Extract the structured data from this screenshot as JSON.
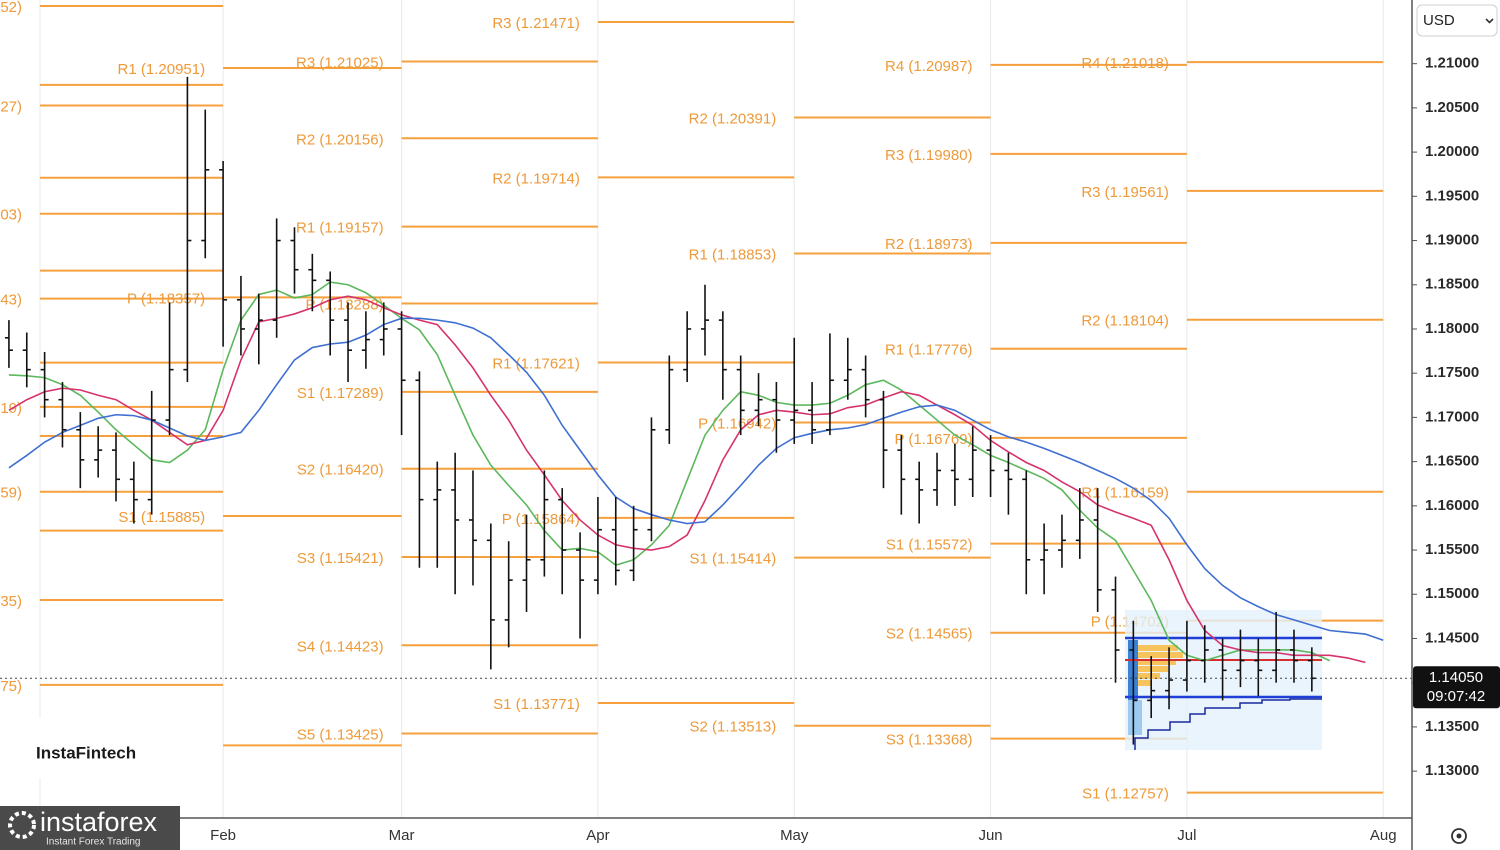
{
  "chart_data": {
    "type": "ohlc",
    "categories": [
      null,
      null,
      null,
      null,
      null,
      null,
      null,
      null,
      null,
      null,
      null,
      null,
      "Feb",
      null,
      null,
      null,
      null,
      null,
      null,
      null,
      null,
      null,
      "Mar",
      null,
      null,
      null,
      null,
      null,
      null,
      null,
      null,
      null,
      null,
      "Apr",
      null,
      null,
      null,
      null,
      null,
      null,
      null,
      null,
      null,
      null,
      "May",
      null,
      null,
      null,
      null,
      null,
      null,
      null,
      null,
      null,
      null,
      "Jun",
      null,
      null,
      null,
      null,
      null,
      null,
      null,
      null,
      null,
      null,
      "Jul",
      null,
      null,
      null,
      null,
      null,
      null,
      null,
      null,
      null,
      null,
      "Aug",
      null
    ],
    "open": [
      1.179,
      1.1776,
      1.1754,
      1.172,
      1.1686,
      1.1652,
      1.1663,
      1.163,
      1.1607,
      1.1697,
      1.1754,
      1.19,
      1.198,
      1.1833,
      1.18,
      1.181,
      1.19,
      1.1867,
      1.1855,
      1.181,
      1.1776,
      1.1788,
      1.18,
      1.1742,
      1.1607,
      1.1618,
      1.1584,
      1.1561,
      1.1471,
      1.1516,
      1.1539,
      1.1607,
      1.155,
      1.1516,
      1.1573,
      1.1527,
      1.1573,
      1.1686,
      1.1754,
      1.18,
      1.181,
      1.1754,
      1.1708,
      1.172,
      1.1697,
      1.1708,
      1.1686,
      1.1742,
      1.1754,
      1.172,
      1.1663,
      1.163,
      1.1618,
      1.164,
      1.163,
      1.1663,
      1.164,
      1.163,
      1.1539,
      1.155,
      1.1561,
      1.1584,
      1.1505,
      1.1437,
      1.138,
      1.1391,
      1.1403,
      1.1425,
      1.1437,
      1.1414,
      1.1425,
      1.1414,
      1.1437,
      1.1425,
      null,
      null,
      null,
      null,
      null
    ],
    "high": [
      1.181,
      1.1796,
      1.1774,
      1.174,
      1.1706,
      1.169,
      1.1683,
      1.165,
      1.173,
      1.183,
      1.2085,
      1.2048,
      1.199,
      1.186,
      1.184,
      1.1925,
      1.1915,
      1.1885,
      1.1865,
      1.183,
      1.182,
      1.183,
      1.182,
      1.1752,
      1.165,
      1.166,
      1.164,
      1.158,
      1.156,
      1.159,
      1.164,
      1.162,
      1.157,
      1.161,
      1.161,
      1.16,
      1.17,
      1.177,
      1.182,
      1.185,
      1.182,
      1.177,
      1.175,
      1.174,
      1.179,
      1.174,
      1.1795,
      1.179,
      1.177,
      1.173,
      1.168,
      1.165,
      1.166,
      1.167,
      1.169,
      1.168,
      1.166,
      1.164,
      1.158,
      1.159,
      1.162,
      1.162,
      1.152,
      1.147,
      1.143,
      1.144,
      1.147,
      1.1465,
      1.145,
      1.146,
      1.145,
      1.148,
      1.146,
      1.144,
      null,
      null,
      null,
      null,
      null
    ],
    "low": [
      1.1756,
      1.1734,
      1.17,
      1.1666,
      1.162,
      1.1632,
      1.1605,
      1.158,
      1.159,
      1.168,
      1.174,
      1.188,
      1.178,
      1.177,
      1.176,
      1.179,
      1.184,
      1.182,
      1.177,
      1.174,
      1.1755,
      1.177,
      1.168,
      1.153,
      1.153,
      1.15,
      1.151,
      1.1415,
      1.144,
      1.148,
      1.152,
      1.15,
      1.145,
      1.15,
      1.151,
      1.1515,
      1.156,
      1.167,
      1.174,
      1.177,
      1.172,
      1.168,
      1.169,
      1.166,
      1.167,
      1.167,
      1.168,
      1.172,
      1.17,
      1.162,
      1.159,
      1.158,
      1.16,
      1.16,
      1.161,
      1.161,
      1.159,
      1.15,
      1.15,
      1.153,
      1.154,
      1.148,
      1.14,
      1.133,
      1.136,
      1.137,
      1.139,
      1.14,
      1.138,
      1.1395,
      1.1385,
      1.14,
      1.14,
      1.139,
      null,
      null,
      null,
      null,
      null
    ],
    "close": [
      1.1776,
      1.1754,
      1.172,
      1.1686,
      1.1652,
      1.1663,
      1.163,
      1.1607,
      1.1697,
      1.1754,
      1.19,
      1.198,
      1.1833,
      1.18,
      1.181,
      1.19,
      1.1867,
      1.1855,
      1.181,
      1.1776,
      1.1788,
      1.18,
      1.1742,
      1.1607,
      1.1618,
      1.1584,
      1.1561,
      1.1471,
      1.1516,
      1.1539,
      1.1607,
      1.155,
      1.1516,
      1.1573,
      1.1527,
      1.1573,
      1.1686,
      1.1754,
      1.18,
      1.181,
      1.1754,
      1.1708,
      1.172,
      1.1697,
      1.1708,
      1.1686,
      1.1742,
      1.1754,
      1.172,
      1.1663,
      1.163,
      1.1618,
      1.164,
      1.163,
      1.1663,
      1.164,
      1.163,
      1.1539,
      1.155,
      1.1561,
      1.1584,
      1.1505,
      1.1437,
      1.138,
      1.1391,
      1.1403,
      1.1425,
      1.1437,
      1.1414,
      1.1425,
      1.1414,
      1.1437,
      1.1425,
      1.1405,
      null,
      null,
      null,
      null,
      null
    ],
    "bar_color": "#111111",
    "series": [
      {
        "color": "#5cb85c",
        "values": [
          1.1748,
          1.1747,
          1.1745,
          1.1737,
          1.1725,
          1.1706,
          1.1686,
          1.1669,
          1.1652,
          1.1649,
          1.1663,
          1.1686,
          1.1754,
          1.181,
          1.1839,
          1.1844,
          1.1835,
          1.1839,
          1.1853,
          1.185,
          1.1841,
          1.1827,
          1.1812,
          1.1799,
          1.1771,
          1.1725,
          1.168,
          1.1646,
          1.1623,
          1.1601,
          1.1572,
          1.155,
          1.1552,
          1.1548,
          1.1533,
          1.1539,
          1.1556,
          1.1578,
          1.1629,
          1.168,
          1.1708,
          1.1729,
          1.1725,
          1.1717,
          1.1714,
          1.1714,
          1.1716,
          1.1725,
          1.1737,
          1.1742,
          1.1731,
          1.1714,
          1.1697,
          1.168,
          1.1669,
          1.1657,
          1.1649,
          1.164,
          1.1631,
          1.1618,
          1.1595,
          1.1575,
          1.1561,
          1.1527,
          1.1493,
          1.1448,
          1.1431,
          1.1425,
          1.1431,
          1.1437,
          1.1437,
          1.1437,
          1.1437,
          1.1434,
          1.1425,
          null,
          null,
          null,
          null
        ]
      },
      {
        "color": "#d6336c",
        "values": [
          1.1708,
          1.172,
          1.1729,
          1.1733,
          1.1731,
          1.1725,
          1.172,
          1.1708,
          1.1697,
          1.1683,
          1.1669,
          1.1674,
          1.1708,
          1.1765,
          1.1808,
          1.1812,
          1.1817,
          1.1824,
          1.1833,
          1.1837,
          1.1833,
          1.1824,
          1.1816,
          1.181,
          1.1805,
          1.1782,
          1.1756,
          1.1725,
          1.1697,
          1.1663,
          1.1635,
          1.1606,
          1.1584,
          1.1567,
          1.1556,
          1.1552,
          1.155,
          1.1554,
          1.1567,
          1.1606,
          1.1652,
          1.1686,
          1.1703,
          1.1708,
          1.1706,
          1.1703,
          1.1704,
          1.1711,
          1.1714,
          1.1722,
          1.1729,
          1.1725,
          1.1714,
          1.1703,
          1.1691,
          1.1674,
          1.1661,
          1.1649,
          1.164,
          1.1627,
          1.1616,
          1.1601,
          1.1593,
          1.1586,
          1.1578,
          1.1539,
          1.1493,
          1.1459,
          1.1442,
          1.1437,
          1.1434,
          1.1434,
          1.1431,
          1.1431,
          1.1431,
          1.1428,
          1.1423,
          null,
          null
        ]
      },
      {
        "color": "#3f6fd1",
        "values": [
          1.1643,
          1.1657,
          1.1672,
          1.1683,
          1.1691,
          1.1699,
          1.1703,
          1.1702,
          1.1697,
          1.1688,
          1.1679,
          1.1674,
          1.1678,
          1.1683,
          1.1708,
          1.1737,
          1.1765,
          1.1779,
          1.1783,
          1.1785,
          1.1793,
          1.1805,
          1.1812,
          1.1812,
          1.181,
          1.1807,
          1.1801,
          1.179,
          1.1771,
          1.1751,
          1.1725,
          1.1691,
          1.1663,
          1.1635,
          1.161,
          1.1597,
          1.159,
          1.1584,
          1.158,
          1.1582,
          1.1601,
          1.1623,
          1.1646,
          1.1665,
          1.1677,
          1.1682,
          1.1686,
          1.1688,
          1.1692,
          1.1699,
          1.1706,
          1.1712,
          1.1714,
          1.1708,
          1.1697,
          1.1686,
          1.1678,
          1.1672,
          1.1665,
          1.1657,
          1.1649,
          1.164,
          1.1631,
          1.162,
          1.1606,
          1.1586,
          1.1556,
          1.1529,
          1.151,
          1.1496,
          1.1486,
          1.1477,
          1.1471,
          1.1465,
          1.1459,
          1.1457,
          1.1455,
          1.1448,
          null
        ]
      }
    ],
    "ylim": [
      1.1247,
      1.2172
    ],
    "yticks": [
      {
        "value": 1.13,
        "label": "1.13000"
      },
      {
        "value": 1.135,
        "label": "1.13500"
      },
      {
        "value": 1.14,
        "label": "1.14000"
      },
      {
        "value": 1.145,
        "label": "1.14500"
      },
      {
        "value": 1.15,
        "label": "1.15000"
      },
      {
        "value": 1.155,
        "label": "1.15500"
      },
      {
        "value": 1.16,
        "label": "1.16000"
      },
      {
        "value": 1.165,
        "label": "1.16500"
      },
      {
        "value": 1.17,
        "label": "1.17000"
      },
      {
        "value": 1.175,
        "label": "1.17500"
      },
      {
        "value": 1.18,
        "label": "1.18000"
      },
      {
        "value": 1.185,
        "label": "1.18500"
      },
      {
        "value": 1.19,
        "label": "1.19000"
      },
      {
        "value": 1.195,
        "label": "1.19500"
      },
      {
        "value": 1.2,
        "label": "1.20000"
      },
      {
        "value": 1.205,
        "label": "1.20500"
      },
      {
        "value": 1.21,
        "label": "1.21000"
      }
    ],
    "pivot_color": "#f5a03c",
    "pivots": [
      {
        "levels": [
          {
            "label": "52)",
            "value": 1.21652
          },
          {
            "value": 1.2076
          },
          {
            "label": "27)",
            "value": 1.20527
          },
          {
            "value": 1.1971
          },
          {
            "label": "03)",
            "value": 1.19303
          },
          {
            "value": 1.1866
          },
          {
            "label": "43)",
            "value": 1.18343
          },
          {
            "value": 1.1762
          },
          {
            "label": "19)",
            "value": 1.17119
          },
          {
            "value": 1.1679
          },
          {
            "label": "59)",
            "value": 1.16159
          },
          {
            "value": 1.1572
          },
          {
            "label": "35)",
            "value": 1.14935
          },
          {
            "label": "75)",
            "value": 1.13975
          }
        ]
      },
      {
        "levels": [
          {
            "label": "R1 (1.20951)",
            "value": 1.20951
          },
          {
            "label": "P (1.18357)",
            "value": 1.18357
          },
          {
            "label": "S1 (1.15885)",
            "value": 1.15885
          },
          {
            "value": 1.13291
          }
        ]
      },
      {
        "levels": [
          {
            "label": "R3 (1.21025)",
            "value": 1.21025
          },
          {
            "label": "R2 (1.20156)",
            "value": 1.20156
          },
          {
            "label": "R1 (1.19157)",
            "value": 1.19157
          },
          {
            "label": "P (1.18288)",
            "value": 1.18288
          },
          {
            "label": "S1 (1.17289)",
            "value": 1.17289
          },
          {
            "label": "S2 (1.16420)",
            "value": 1.1642
          },
          {
            "label": "S3 (1.15421)",
            "value": 1.15421
          },
          {
            "label": "S4 (1.14423)",
            "value": 1.14423
          },
          {
            "label": "S5 (1.13425)",
            "value": 1.13425
          }
        ]
      },
      {
        "levels": [
          {
            "label": "R3 (1.21471)",
            "value": 1.21471
          },
          {
            "label": "R2 (1.19714)",
            "value": 1.19714
          },
          {
            "label": "R1 (1.17621)",
            "value": 1.17621
          },
          {
            "label": "P (1.15864)",
            "value": 1.15864
          },
          {
            "label": "S1 (1.13771)",
            "value": 1.13771
          }
        ]
      },
      {
        "levels": [
          {
            "label": "R2 (1.20391)",
            "value": 1.20391
          },
          {
            "label": "R1 (1.18853)",
            "value": 1.18853
          },
          {
            "label": "P (1.16942)",
            "value": 1.16942
          },
          {
            "label": "S1 (1.15414)",
            "value": 1.15414
          },
          {
            "label": "S2 (1.13513)",
            "value": 1.13513
          }
        ]
      },
      {
        "levels": [
          {
            "label": "R4 (1.20987)",
            "value": 1.20987
          },
          {
            "label": "R3 (1.19980)",
            "value": 1.1998
          },
          {
            "label": "R2 (1.18973)",
            "value": 1.18973
          },
          {
            "label": "R1 (1.17776)",
            "value": 1.17776
          },
          {
            "label": "P (1.16769)",
            "value": 1.16769
          },
          {
            "label": "S1 (1.15572)",
            "value": 1.15572
          },
          {
            "label": "S2 (1.14565)",
            "value": 1.14565
          },
          {
            "label": "S3 (1.13368)",
            "value": 1.13368
          }
        ]
      },
      {
        "levels": [
          {
            "label": "R4 (1.21018)",
            "value": 1.21018
          },
          {
            "label": "R3 (1.19561)",
            "value": 1.19561
          },
          {
            "label": "R2 (1.18104)",
            "value": 1.18104
          },
          {
            "label": "R1 (1.16159)",
            "value": 1.16159
          },
          {
            "label": "P (1.14702)",
            "value": 1.14702
          },
          {
            "label": "S1 (1.12757)",
            "value": 1.12757
          }
        ]
      }
    ],
    "last_price": {
      "value": 1.1405,
      "label": "1.14050"
    },
    "countdown": "09:07:42"
  },
  "currency": "USD",
  "brand_box": "InstaFintech",
  "logo": {
    "name": "instaforex",
    "tagline": "Instant Forex Trading"
  }
}
